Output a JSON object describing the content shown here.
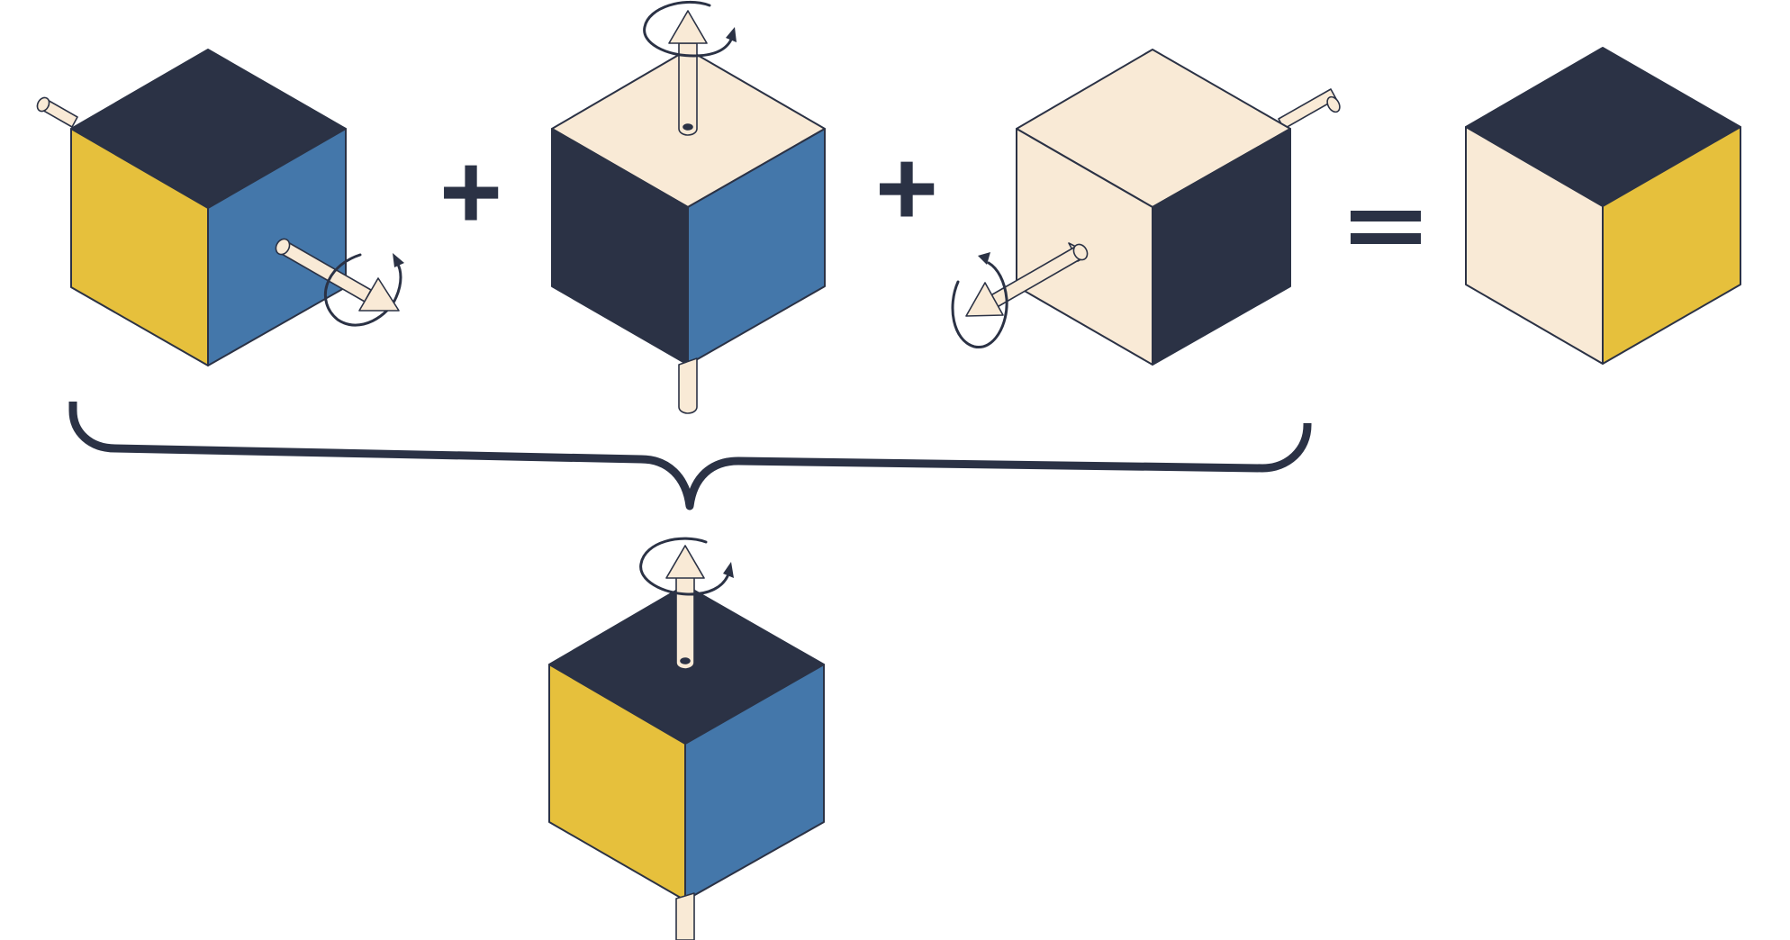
{
  "figure": {
    "operators": [
      "+",
      "+",
      "="
    ],
    "colors": {
      "ink": "#2b3245",
      "navy": "#2b3245",
      "cream": "#f9ead6",
      "yellow": "#e6c03c",
      "blue": "#4477aa",
      "background": "#ffffff"
    },
    "cubes": [
      {
        "id": "rotation-1",
        "faces": {
          "top": "navy",
          "left": "yellow",
          "right": "blue"
        },
        "rotation_axis": "right-front"
      },
      {
        "id": "rotation-2",
        "faces": {
          "top": "cream",
          "left": "navy",
          "right": "blue"
        },
        "rotation_axis": "vertical"
      },
      {
        "id": "rotation-3",
        "faces": {
          "top": "cream",
          "left": "cream",
          "right": "navy"
        },
        "rotation_axis": "left-front"
      },
      {
        "id": "result",
        "faces": {
          "top": "navy",
          "left": "cream",
          "right": "yellow"
        },
        "rotation_axis": "none"
      },
      {
        "id": "equivalent-single-rotation",
        "faces": {
          "top": "navy",
          "left": "yellow",
          "right": "blue"
        },
        "rotation_axis": "vertical"
      }
    ]
  }
}
